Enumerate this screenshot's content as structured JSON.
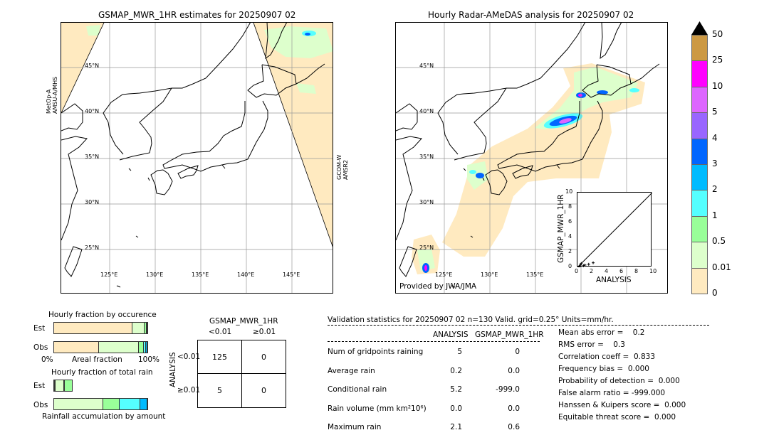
{
  "left_map": {
    "title": "GSMAP_MWR_1HR estimates for 20250907 02",
    "left_label": "MetOp-A\nAMSU-A/MHS",
    "left_label_1": "MetOp-A",
    "left_label_2": "AMSU-A/MHS",
    "right_label_1": "GCOM-W",
    "right_label_2": "AMSR2"
  },
  "right_map": {
    "title": "Hourly Radar-AMeDAS analysis for 20250907 02",
    "credit": "Provided by JWA/JMA"
  },
  "lat_ticks": [
    "45°N",
    "40°N",
    "35°N",
    "30°N",
    "25°N"
  ],
  "lon_ticks": [
    "125°E",
    "130°E",
    "135°E",
    "140°E",
    "145°E"
  ],
  "right_lon_ticks": [
    "125°E",
    "130°E",
    "135°E"
  ],
  "colorbar": {
    "labels": [
      "50",
      "25",
      "10",
      "5",
      "4",
      "3",
      "2",
      "1",
      "0.5",
      "0.01",
      "0"
    ],
    "colors": [
      "#cc9944",
      "#ff00ff",
      "#dd66ff",
      "#9966ff",
      "#0066ff",
      "#00bbff",
      "#55ffff",
      "#99ff99",
      "#ddffcc",
      "#ffeac0"
    ],
    "extend_color": "#000000"
  },
  "inset": {
    "ylabel": "GSMAP_MWR_1HR",
    "xlabel": "ANALYSIS",
    "ticks": [
      "0",
      "2",
      "4",
      "6",
      "8",
      "10"
    ],
    "points": [
      [
        0.1,
        0.0
      ],
      [
        0.2,
        0.05
      ],
      [
        0.3,
        0.1
      ],
      [
        0.4,
        0.3
      ],
      [
        0.5,
        0.5
      ],
      [
        0.8,
        0.2
      ],
      [
        1.0,
        0.3
      ],
      [
        1.5,
        0.4
      ],
      [
        2.1,
        0.6
      ]
    ],
    "range": [
      0,
      10
    ]
  },
  "occurrence": {
    "title": "Hourly fraction by occurence",
    "est_label": "Est",
    "obs_label": "Obs",
    "xlabel": "Areal fraction",
    "x0": "0%",
    "x1": "100%",
    "est": [
      {
        "f": 0.84,
        "c": "#ffeac0"
      },
      {
        "f": 0.13,
        "c": "#ddffcc"
      },
      {
        "f": 0.02,
        "c": "#99ff99"
      },
      {
        "f": 0.01,
        "c": "#55ffff"
      }
    ],
    "obs": [
      {
        "f": 0.48,
        "c": "#ffeac0"
      },
      {
        "f": 0.43,
        "c": "#ddffcc"
      },
      {
        "f": 0.05,
        "c": "#99ff99"
      },
      {
        "f": 0.025,
        "c": "#55ffff"
      },
      {
        "f": 0.015,
        "c": "#00bbff"
      }
    ]
  },
  "total_rain": {
    "title": "Hourly fraction of total rain",
    "est_label": "Est",
    "obs_label": "Obs",
    "xlabel": "Rainfall accumulation by amount",
    "est": [
      {
        "f": 0.01,
        "c": "#ffeac0"
      },
      {
        "f": 0.1,
        "c": "#ddffcc"
      },
      {
        "f": 0.09,
        "c": "#99ff99"
      }
    ],
    "obs": [
      {
        "f": 0.53,
        "c": "#ddffcc"
      },
      {
        "f": 0.17,
        "c": "#99ff99"
      },
      {
        "f": 0.22,
        "c": "#55ffff"
      },
      {
        "f": 0.08,
        "c": "#00bbff"
      }
    ]
  },
  "contingency": {
    "title": "GSMAP_MWR_1HR",
    "col1": "<0.01",
    "col2": "≥0.01",
    "ylabel": "ANALYSIS",
    "row1": "<0.01",
    "row2": "≥0.01",
    "cells": [
      "125",
      "0",
      "5",
      "0"
    ]
  },
  "stats": {
    "header": "Validation statistics for 20250907 02  n=130 Valid. grid=0.25° Units=mm/hr.",
    "col_analysis": "ANALYSIS",
    "col_gsmap": "GSMAP_MWR_1HR",
    "rows": [
      {
        "label": "Num of gridpoints raining",
        "a": "5",
        "g": "0"
      },
      {
        "label": "Average rain",
        "a": "0.2",
        "g": "0.0"
      },
      {
        "label": "Conditional rain",
        "a": "5.2",
        "g": "-999.0"
      },
      {
        "label": "Rain volume (mm km²10⁶)",
        "a": "0.0",
        "g": "0.0"
      },
      {
        "label": "Maximum rain",
        "a": "2.1",
        "g": "0.6"
      }
    ],
    "scores": [
      "Mean abs error =    0.2",
      "RMS error =    0.3",
      "Correlation coeff =  0.833",
      "Frequency bias =  0.000",
      "Probability of detection =  0.000",
      "False alarm ratio = -999.000",
      "Hanssen & Kuipers score =  0.000",
      "Equitable threat score =  0.000"
    ]
  }
}
